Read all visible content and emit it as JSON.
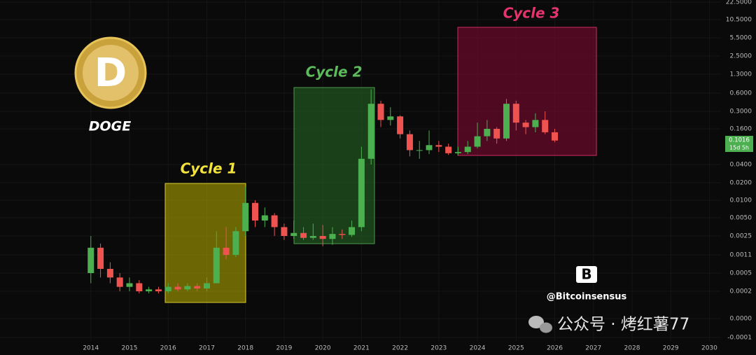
{
  "chart_data": {
    "type": "candlestick",
    "x": [
      2014.0,
      2014.25,
      2014.5,
      2014.75,
      2015.0,
      2015.25,
      2015.5,
      2015.75,
      2016.0,
      2016.25,
      2016.5,
      2016.75,
      2017.0,
      2017.25,
      2017.5,
      2017.75,
      2018.0,
      2018.25,
      2018.5,
      2018.75,
      2019.0,
      2019.25,
      2019.5,
      2019.75,
      2020.0,
      2020.25,
      2020.5,
      2020.75,
      2021.0,
      2021.25,
      2021.5,
      2021.75,
      2022.0,
      2022.25,
      2022.5,
      2022.75,
      2023.0,
      2023.25,
      2023.5,
      2023.75,
      2024.0,
      2024.25,
      2024.5,
      2024.75,
      2025.0,
      2025.25,
      2025.5,
      2025.75,
      2026.0
    ],
    "open": [
      0.0005,
      0.0015,
      0.0006,
      0.0004,
      0.00025,
      0.0003,
      0.0002,
      0.00022,
      0.0002,
      0.00025,
      0.00022,
      0.00026,
      0.00023,
      0.0003,
      0.0015,
      0.0011,
      0.003,
      0.009,
      0.0045,
      0.0055,
      0.0035,
      0.0025,
      0.0028,
      0.0023,
      0.0025,
      0.0022,
      0.0027,
      0.0026,
      0.0035,
      0.05,
      0.4,
      0.22,
      0.25,
      0.13,
      0.07,
      0.07,
      0.085,
      0.08,
      0.062,
      0.065,
      0.08,
      0.12,
      0.16,
      0.11,
      0.4,
      0.2,
      0.17,
      0.22,
      0.14
    ],
    "high": [
      0.0025,
      0.0018,
      0.0008,
      0.0005,
      0.0004,
      0.00035,
      0.00025,
      0.00025,
      0.0003,
      0.0003,
      0.0003,
      0.0003,
      0.0004,
      0.003,
      0.0035,
      0.0035,
      0.017,
      0.01,
      0.0075,
      0.006,
      0.004,
      0.0045,
      0.0035,
      0.004,
      0.0038,
      0.0035,
      0.0032,
      0.0045,
      0.08,
      0.7,
      0.45,
      0.35,
      0.26,
      0.15,
      0.1,
      0.15,
      0.1,
      0.09,
      0.08,
      0.1,
      0.2,
      0.22,
      0.17,
      0.48,
      0.45,
      0.22,
      0.28,
      0.3,
      0.16
    ],
    "low": [
      0.0003,
      0.0004,
      0.0003,
      0.0002,
      0.0002,
      0.00018,
      0.00018,
      0.00018,
      0.00018,
      0.0002,
      0.0002,
      0.0002,
      0.0002,
      0.0003,
      0.0009,
      0.001,
      0.0025,
      0.0035,
      0.0035,
      0.0025,
      0.0021,
      0.0022,
      0.0021,
      0.0021,
      0.0016,
      0.0017,
      0.0022,
      0.0024,
      0.003,
      0.04,
      0.17,
      0.18,
      0.11,
      0.055,
      0.05,
      0.06,
      0.065,
      0.058,
      0.058,
      0.06,
      0.075,
      0.1,
      0.09,
      0.1,
      0.15,
      0.13,
      0.14,
      0.13,
      0.095
    ],
    "close": [
      0.0015,
      0.0006,
      0.0004,
      0.00025,
      0.0003,
      0.0002,
      0.00022,
      0.0002,
      0.00025,
      0.00022,
      0.00026,
      0.00023,
      0.0003,
      0.0015,
      0.0011,
      0.003,
      0.009,
      0.0045,
      0.0055,
      0.0035,
      0.0025,
      0.0028,
      0.0023,
      0.0025,
      0.0022,
      0.0027,
      0.0026,
      0.0035,
      0.05,
      0.4,
      0.22,
      0.25,
      0.13,
      0.07,
      0.07,
      0.085,
      0.08,
      0.062,
      0.065,
      0.08,
      0.12,
      0.16,
      0.11,
      0.4,
      0.2,
      0.17,
      0.22,
      0.14,
      0.1016
    ],
    "up_color": "#4caf50",
    "down_color": "#ef5350",
    "yscale": "log",
    "ylim": [
      -0.0001,
      22.5
    ],
    "yticks": [
      {
        "value": 22.5,
        "label": "22.5000"
      },
      {
        "value": 10.5,
        "label": "10.5000"
      },
      {
        "value": 5.5,
        "label": "5.5000"
      },
      {
        "value": 2.5,
        "label": "2.5000"
      },
      {
        "value": 1.3,
        "label": "1.3000"
      },
      {
        "value": 0.6,
        "label": "0.6000"
      },
      {
        "value": 0.3,
        "label": "0.3000"
      },
      {
        "value": 0.16,
        "label": "0.1600"
      },
      {
        "value": 0.04,
        "label": "0.0400"
      },
      {
        "value": 0.02,
        "label": "0.0200"
      },
      {
        "value": 0.01,
        "label": "0.0100"
      },
      {
        "value": 0.005,
        "label": "0.0050"
      },
      {
        "value": 0.0025,
        "label": "0.0025"
      },
      {
        "value": 0.0011,
        "label": "0.0011"
      },
      {
        "value": 0.0005,
        "label": "0.0005"
      },
      {
        "value": 0.0002,
        "label": "0.0002"
      },
      {
        "value": 0,
        "label": "0.0000"
      },
      {
        "value": -0.0001,
        "label": "-0.0001"
      }
    ],
    "xlim": [
      2011.65,
      2030.3
    ],
    "xticks": [
      2014,
      2015,
      2016,
      2017,
      2018,
      2019,
      2020,
      2021,
      2022,
      2023,
      2024,
      2025,
      2026,
      2027,
      2028,
      2029,
      2030
    ],
    "countdown": "15d 5h",
    "annotations": [
      {
        "text": "Cycle 1",
        "color": "#f2e33a"
      },
      {
        "text": "Cycle 2",
        "color": "#5dbb5d"
      },
      {
        "text": "Cycle 3",
        "color": "#e4336d"
      }
    ]
  },
  "logo_label": "DOGE",
  "handle": "@Bitcoinsensus",
  "watermark": "公众号 · 烤红薯77"
}
